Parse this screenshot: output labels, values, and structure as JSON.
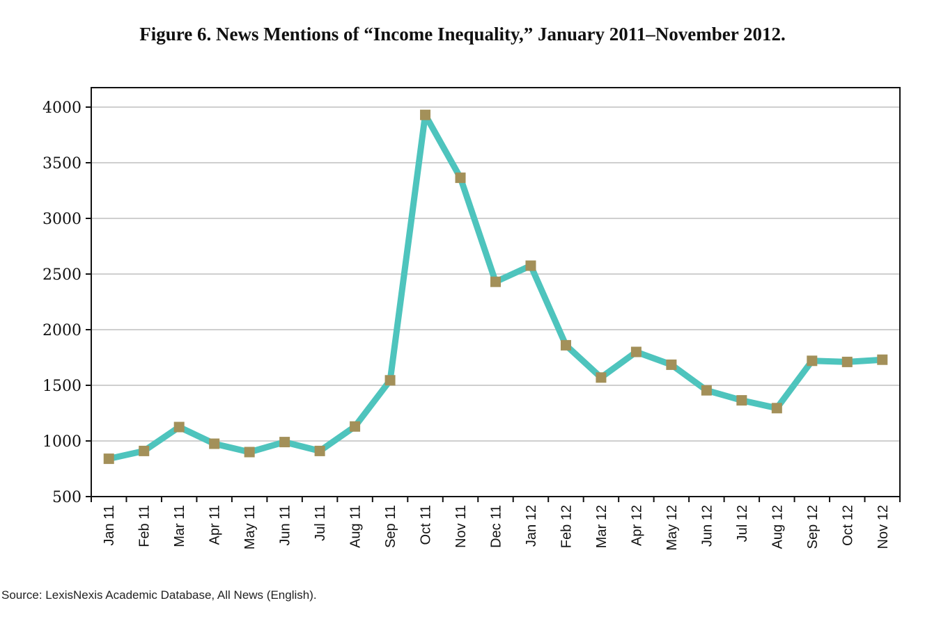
{
  "title": "Figure 6. News Mentions of “Income Inequality,” January 2011–November 2012.",
  "source": "Source: LexisNexis Academic Database, All News (English).",
  "colors": {
    "line": "#4ec4bd",
    "marker": "#a39059",
    "grid": "#cfcfcf",
    "axis": "#111111"
  },
  "chart_data": {
    "type": "line",
    "title": "Figure 6. News Mentions of “Income Inequality,” January 2011–November 2012.",
    "xlabel": "",
    "ylabel": "",
    "ylim": [
      500,
      4000
    ],
    "yticks": [
      500,
      1000,
      1500,
      2000,
      2500,
      3000,
      3500,
      4000
    ],
    "grid": true,
    "categories": [
      "Jan 11",
      "Feb 11",
      "Mar 11",
      "Apr 11",
      "May 11",
      "Jun 11",
      "Jul 11",
      "Aug 11",
      "Sep 11",
      "Oct 11",
      "Nov 11",
      "Dec 11",
      "Jan 12",
      "Feb 12",
      "Mar 12",
      "Apr 12",
      "May 12",
      "Jun 12",
      "Jul 12",
      "Aug 12",
      "Sep 12",
      "Oct 12",
      "Nov 12"
    ],
    "values": [
      840,
      910,
      1125,
      975,
      900,
      990,
      910,
      1130,
      1545,
      3930,
      3365,
      2430,
      2575,
      1860,
      1570,
      1800,
      1685,
      1455,
      1365,
      1295,
      1720,
      1710,
      1730
    ]
  }
}
